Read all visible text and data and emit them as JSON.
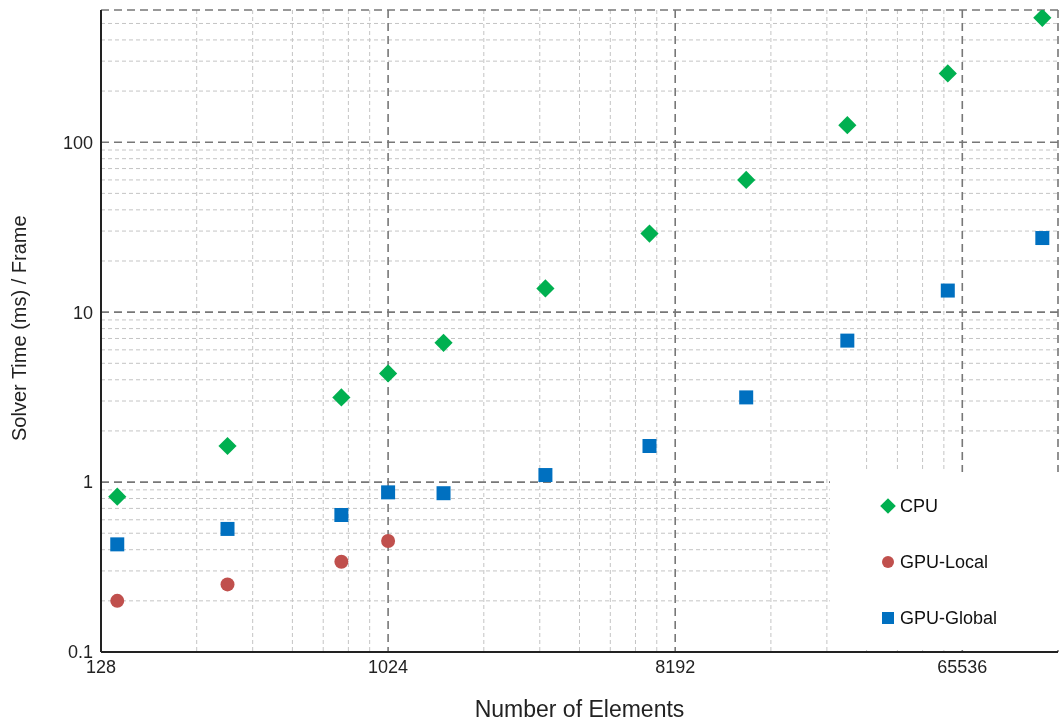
{
  "chart_data": {
    "type": "scatter",
    "xlabel": "Number of Elements",
    "ylabel": "Solver Time (ms) / Frame",
    "x": [
      144,
      320,
      730,
      1024,
      1530,
      3200,
      6800,
      13700,
      28500,
      59000,
      117000
    ],
    "series": [
      {
        "name": "CPU",
        "color": "#00b050",
        "marker": "diamond",
        "values": [
          0.82,
          1.63,
          3.15,
          4.36,
          6.6,
          13.8,
          29,
          60,
          126,
          254,
          540
        ]
      },
      {
        "name": "GPU-Local",
        "color": "#c0504d",
        "marker": "circle",
        "values": [
          0.2,
          0.25,
          0.34,
          0.45,
          null,
          null,
          null,
          null,
          null,
          null,
          null
        ]
      },
      {
        "name": "GPU-Global",
        "color": "#0070c0",
        "marker": "square",
        "values": [
          0.43,
          0.53,
          0.64,
          0.87,
          0.86,
          1.1,
          1.63,
          3.15,
          6.8,
          13.4,
          27.3
        ]
      }
    ],
    "log": "xy",
    "xlim": [
      128,
      131072
    ],
    "xticks": [
      128,
      1024,
      8192,
      65536
    ],
    "ylim": [
      0.1,
      600
    ],
    "yticks": [
      0.1,
      1,
      10,
      100
    ],
    "grid": true,
    "legend": "bottom right"
  }
}
